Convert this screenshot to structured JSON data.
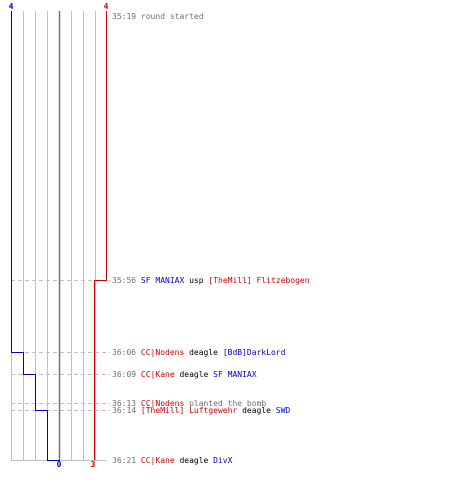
{
  "colors": {
    "team_left": "#0000cc",
    "team_right": "#cc0000",
    "grid": "#c0c0c0",
    "center_line": "#777777",
    "dash": "#c0c0c0",
    "time_text": "#707070",
    "event_text": "#000000",
    "meta_text": "#707070"
  },
  "counters": {
    "left_top": "4",
    "right_top": "4",
    "left_bottom": "0",
    "right_bottom": "3"
  },
  "events": [
    {
      "time": "35:19",
      "segments": [
        {
          "text": "round started",
          "team": "meta"
        }
      ]
    },
    {
      "time": "35:56",
      "segments": [
        {
          "text": "SF MANIAX",
          "team": "blue"
        },
        {
          "text": " usp ",
          "team": "none"
        },
        {
          "text": "[TheMill] Flitzebogen",
          "team": "red"
        }
      ]
    },
    {
      "time": "36:06",
      "segments": [
        {
          "text": "CC|Nodens",
          "team": "red"
        },
        {
          "text": " deagle ",
          "team": "none"
        },
        {
          "text": "[BdB]DarkLord",
          "team": "blue"
        }
      ]
    },
    {
      "time": "36:09",
      "segments": [
        {
          "text": "CC|Kane",
          "team": "red"
        },
        {
          "text": " deagle ",
          "team": "none"
        },
        {
          "text": "SF MANIAX",
          "team": "blue"
        }
      ]
    },
    {
      "time": "36:13",
      "segments": [
        {
          "text": "CC|Nodens",
          "team": "red"
        },
        {
          "text": " planted the bomb",
          "team": "meta"
        }
      ]
    },
    {
      "time": "36:14",
      "segments": [
        {
          "text": "[TheMill] Luftgewehr",
          "team": "red"
        },
        {
          "text": " deagle ",
          "team": "none"
        },
        {
          "text": "SWD",
          "team": "blue"
        }
      ]
    },
    {
      "time": "36:21",
      "segments": [
        {
          "text": "CC|Kane",
          "team": "red"
        },
        {
          "text": " deagle ",
          "team": "none"
        },
        {
          "text": "DivX",
          "team": "blue"
        }
      ]
    }
  ],
  "alive_after_event": {
    "left": [
      4,
      4,
      3,
      2,
      2,
      1,
      0
    ],
    "right": [
      4,
      3,
      3,
      3,
      3,
      3,
      3
    ]
  }
}
